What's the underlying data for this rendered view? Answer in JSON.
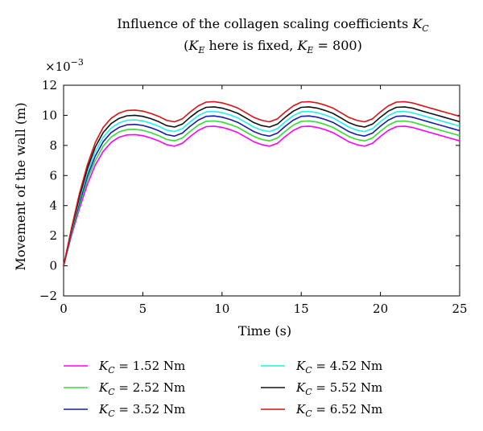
{
  "chart_data": {
    "type": "line",
    "title": "Influence of the collagen scaling coefficients K_C",
    "subtitle": "(K_E here is fixed, K_E = 800)",
    "exponent_label": "×10",
    "exponent_power": "−3",
    "xlabel": "Time (s)",
    "ylabel": "Movement of the wall (m)",
    "xlim": [
      0,
      25
    ],
    "ylim": [
      -2,
      12
    ],
    "xticks": [
      0,
      5,
      10,
      15,
      20,
      25
    ],
    "yticks": [
      -2,
      0,
      2,
      4,
      6,
      8,
      10,
      12
    ],
    "grid": false,
    "legend_position": "bottom",
    "series": [
      {
        "name": "K_C = 1.52 Nm",
        "color": "#ff00ff",
        "x": [
          0,
          0.5,
          1,
          1.5,
          2,
          2.5,
          3,
          3.5,
          4,
          4.5,
          5,
          5.5,
          6,
          6.5,
          7,
          7.5,
          8,
          8.5,
          9,
          9.5,
          10,
          10.5,
          11,
          11.5,
          12,
          12.5,
          13,
          13.5,
          14,
          14.5,
          15,
          15.5,
          16,
          16.5,
          17,
          17.5,
          18,
          18.5,
          19,
          19.5,
          20,
          20.5,
          21,
          21.5,
          22,
          22.5,
          23,
          23.5,
          24,
          24.5,
          25
        ],
        "values": [
          0,
          2.0,
          3.8,
          5.4,
          6.7,
          7.6,
          8.2,
          8.55,
          8.7,
          8.72,
          8.65,
          8.5,
          8.3,
          8.05,
          7.95,
          8.15,
          8.6,
          9.0,
          9.25,
          9.28,
          9.2,
          9.05,
          8.85,
          8.55,
          8.25,
          8.05,
          7.95,
          8.15,
          8.6,
          9.0,
          9.25,
          9.28,
          9.2,
          9.05,
          8.85,
          8.55,
          8.25,
          8.05,
          7.95,
          8.15,
          8.6,
          9.0,
          9.25,
          9.28,
          9.2,
          9.05,
          8.9,
          8.75,
          8.6,
          8.45,
          8.3
        ]
      },
      {
        "name": "K_C = 2.52 Nm",
        "color": "#33dd33",
        "x": [
          0,
          0.5,
          1,
          1.5,
          2,
          2.5,
          3,
          3.5,
          4,
          4.5,
          5,
          5.5,
          6,
          6.5,
          7,
          7.5,
          8,
          8.5,
          9,
          9.5,
          10,
          10.5,
          11,
          11.5,
          12,
          12.5,
          13,
          13.5,
          14,
          14.5,
          15,
          15.5,
          16,
          16.5,
          17,
          17.5,
          18,
          18.5,
          19,
          19.5,
          20,
          20.5,
          21,
          21.5,
          22,
          22.5,
          23,
          23.5,
          24,
          24.5,
          25
        ],
        "values": [
          0,
          2.1,
          4.0,
          5.7,
          7.0,
          7.95,
          8.55,
          8.9,
          9.05,
          9.07,
          9.0,
          8.85,
          8.65,
          8.4,
          8.3,
          8.5,
          8.95,
          9.35,
          9.6,
          9.63,
          9.55,
          9.4,
          9.2,
          8.9,
          8.6,
          8.4,
          8.3,
          8.5,
          8.95,
          9.35,
          9.6,
          9.63,
          9.55,
          9.4,
          9.2,
          8.9,
          8.6,
          8.4,
          8.3,
          8.5,
          8.95,
          9.35,
          9.6,
          9.63,
          9.55,
          9.4,
          9.25,
          9.1,
          8.95,
          8.8,
          8.65
        ]
      },
      {
        "name": "K_C = 3.52 Nm",
        "color": "#1a1aaa",
        "x": [
          0,
          0.5,
          1,
          1.5,
          2,
          2.5,
          3,
          3.5,
          4,
          4.5,
          5,
          5.5,
          6,
          6.5,
          7,
          7.5,
          8,
          8.5,
          9,
          9.5,
          10,
          10.5,
          11,
          11.5,
          12,
          12.5,
          13,
          13.5,
          14,
          14.5,
          15,
          15.5,
          16,
          16.5,
          17,
          17.5,
          18,
          18.5,
          19,
          19.5,
          20,
          20.5,
          21,
          21.5,
          22,
          22.5,
          23,
          23.5,
          24,
          24.5,
          25
        ],
        "values": [
          0,
          2.2,
          4.2,
          5.95,
          7.3,
          8.25,
          8.85,
          9.2,
          9.37,
          9.4,
          9.33,
          9.18,
          8.98,
          8.72,
          8.62,
          8.82,
          9.28,
          9.68,
          9.93,
          9.96,
          9.88,
          9.73,
          9.53,
          9.23,
          8.92,
          8.72,
          8.62,
          8.82,
          9.28,
          9.68,
          9.93,
          9.96,
          9.88,
          9.73,
          9.53,
          9.23,
          8.92,
          8.72,
          8.62,
          8.82,
          9.28,
          9.68,
          9.93,
          9.96,
          9.88,
          9.73,
          9.58,
          9.43,
          9.28,
          9.13,
          8.98
        ]
      },
      {
        "name": "K_C = 4.52 Nm",
        "color": "#22eeee",
        "x": [
          0,
          0.5,
          1,
          1.5,
          2,
          2.5,
          3,
          3.5,
          4,
          4.5,
          5,
          5.5,
          6,
          6.5,
          7,
          7.5,
          8,
          8.5,
          9,
          9.5,
          10,
          10.5,
          11,
          11.5,
          12,
          12.5,
          13,
          13.5,
          14,
          14.5,
          15,
          15.5,
          16,
          16.5,
          17,
          17.5,
          18,
          18.5,
          19,
          19.5,
          20,
          20.5,
          21,
          21.5,
          22,
          22.5,
          23,
          23.5,
          24,
          24.5,
          25
        ],
        "values": [
          0,
          2.3,
          4.4,
          6.2,
          7.6,
          8.55,
          9.15,
          9.5,
          9.67,
          9.7,
          9.63,
          9.48,
          9.28,
          9.02,
          8.92,
          9.12,
          9.58,
          9.98,
          10.23,
          10.26,
          10.18,
          10.03,
          9.83,
          9.53,
          9.22,
          9.02,
          8.92,
          9.12,
          9.58,
          9.98,
          10.23,
          10.26,
          10.18,
          10.03,
          9.83,
          9.53,
          9.22,
          9.02,
          8.92,
          9.12,
          9.58,
          9.98,
          10.23,
          10.26,
          10.18,
          10.03,
          9.88,
          9.73,
          9.58,
          9.43,
          9.28
        ]
      },
      {
        "name": "K_C = 5.52 Nm",
        "color": "#111111",
        "x": [
          0,
          0.5,
          1,
          1.5,
          2,
          2.5,
          3,
          3.5,
          4,
          4.5,
          5,
          5.5,
          6,
          6.5,
          7,
          7.5,
          8,
          8.5,
          9,
          9.5,
          10,
          10.5,
          11,
          11.5,
          12,
          12.5,
          13,
          13.5,
          14,
          14.5,
          15,
          15.5,
          16,
          16.5,
          17,
          17.5,
          18,
          18.5,
          19,
          19.5,
          20,
          20.5,
          21,
          21.5,
          22,
          22.5,
          23,
          23.5,
          24,
          24.5,
          25
        ],
        "values": [
          0,
          2.4,
          4.6,
          6.45,
          7.9,
          8.85,
          9.45,
          9.8,
          9.97,
          10.0,
          9.93,
          9.78,
          9.58,
          9.32,
          9.22,
          9.42,
          9.88,
          10.28,
          10.53,
          10.56,
          10.48,
          10.33,
          10.13,
          9.83,
          9.52,
          9.32,
          9.22,
          9.42,
          9.88,
          10.28,
          10.53,
          10.56,
          10.48,
          10.33,
          10.13,
          9.83,
          9.52,
          9.32,
          9.22,
          9.42,
          9.88,
          10.28,
          10.53,
          10.56,
          10.48,
          10.33,
          10.18,
          10.03,
          9.88,
          9.73,
          9.58
        ]
      },
      {
        "name": "K_C = 6.52 Nm",
        "color": "#dd1111",
        "x": [
          0,
          0.5,
          1,
          1.5,
          2,
          2.5,
          3,
          3.5,
          4,
          4.5,
          5,
          5.5,
          6,
          6.5,
          7,
          7.5,
          8,
          8.5,
          9,
          9.5,
          10,
          10.5,
          11,
          11.5,
          12,
          12.5,
          13,
          13.5,
          14,
          14.5,
          15,
          15.5,
          16,
          16.5,
          17,
          17.5,
          18,
          18.5,
          19,
          19.5,
          20,
          20.5,
          21,
          21.5,
          22,
          22.5,
          23,
          23.5,
          24,
          24.5,
          25
        ],
        "values": [
          0,
          2.5,
          4.8,
          6.7,
          8.2,
          9.2,
          9.8,
          10.15,
          10.32,
          10.35,
          10.28,
          10.13,
          9.93,
          9.67,
          9.57,
          9.77,
          10.23,
          10.63,
          10.88,
          10.91,
          10.83,
          10.68,
          10.48,
          10.18,
          9.87,
          9.67,
          9.57,
          9.77,
          10.23,
          10.63,
          10.88,
          10.91,
          10.83,
          10.68,
          10.48,
          10.18,
          9.87,
          9.67,
          9.57,
          9.77,
          10.23,
          10.63,
          10.88,
          10.91,
          10.83,
          10.68,
          10.53,
          10.38,
          10.23,
          10.08,
          9.93
        ]
      }
    ]
  }
}
